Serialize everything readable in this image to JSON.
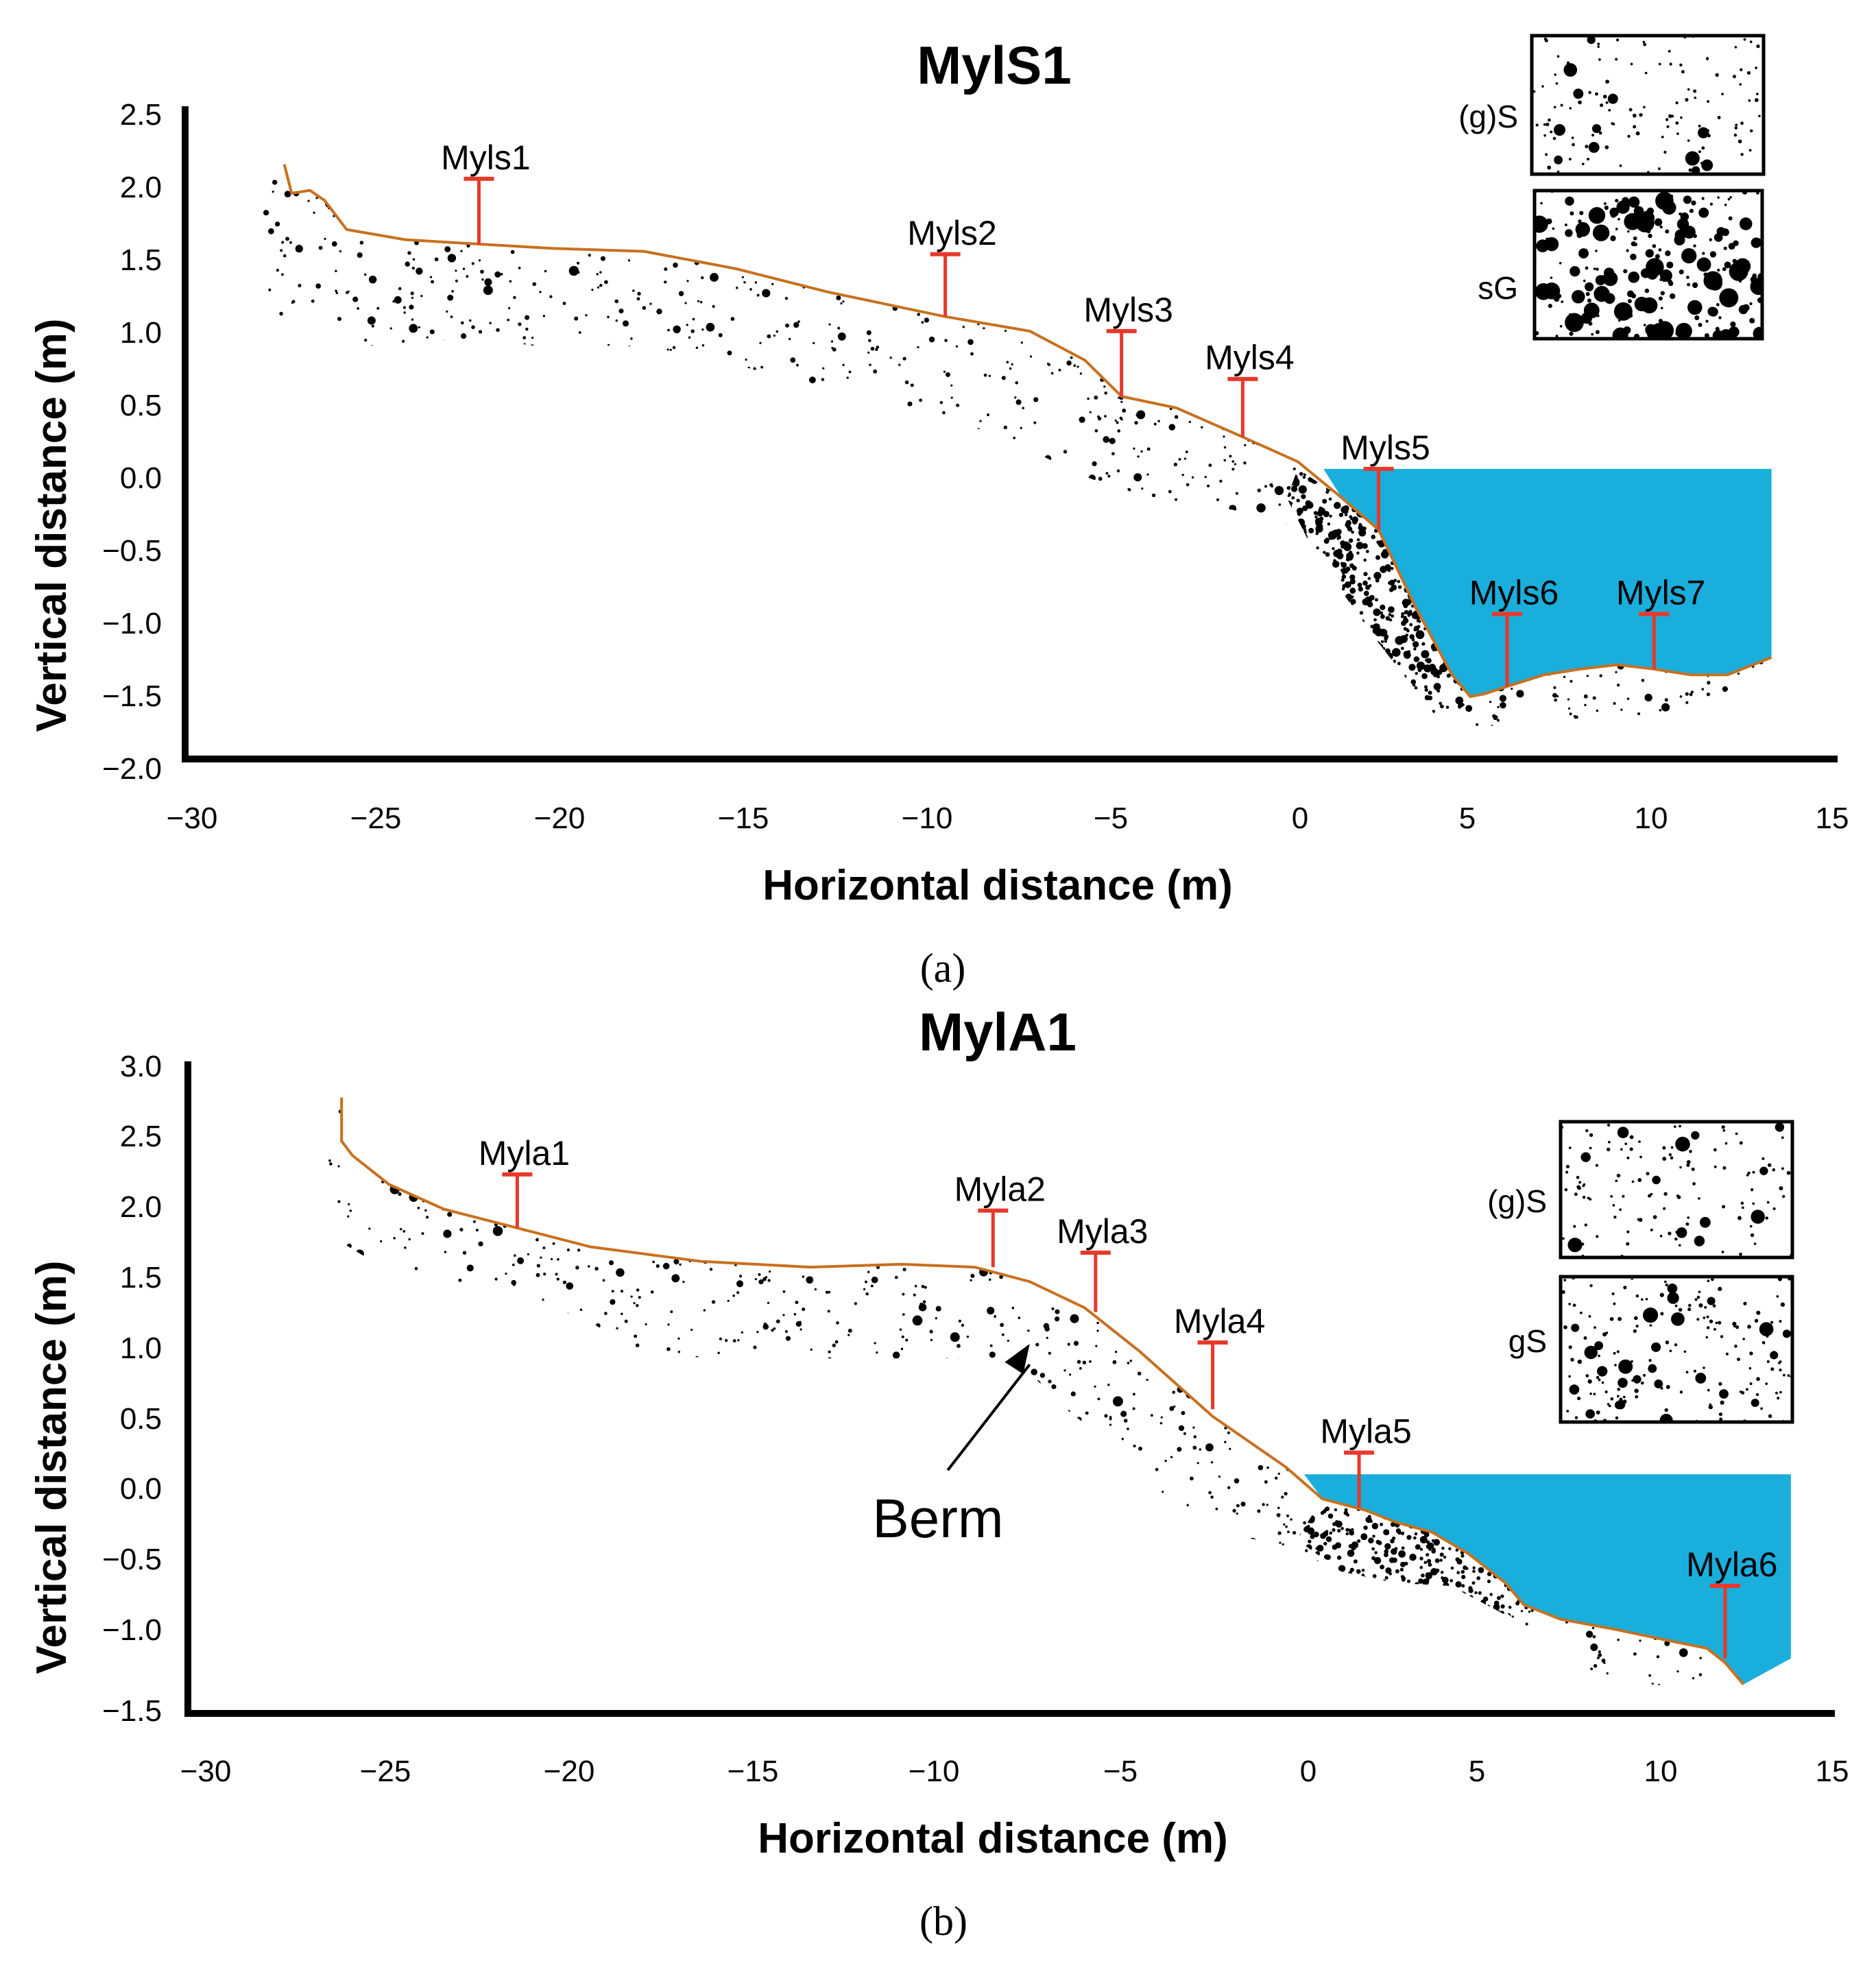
{
  "colors": {
    "profile": "#c8701e",
    "water": "#1aaedc",
    "station": "#e8382a",
    "sediment": "#000000"
  },
  "chart_data": [
    {
      "type": "line",
      "title": "MylS1",
      "panel_label": "(a)",
      "xlabel": "Horizontal distance (m)",
      "ylabel": "Vertical distance (m)",
      "xlim": [
        -30,
        15
      ],
      "ylim": [
        -2.0,
        2.5
      ],
      "xticks": [
        "−30",
        "−25",
        "−20",
        "−15",
        "−10",
        "−5",
        "0",
        "5",
        "10",
        "15"
      ],
      "xtick_values": [
        -30,
        -25,
        -20,
        -15,
        -10,
        -5,
        0,
        5,
        10,
        15
      ],
      "yticks": [
        "2.5",
        "2.0",
        "1.5",
        "1.0",
        "0.5",
        "0.0",
        "−0.5",
        "−1.0",
        "−1.5",
        "−2.0"
      ],
      "ytick_values": [
        2.5,
        2.0,
        1.5,
        1.0,
        0.5,
        0.0,
        -0.5,
        -1.0,
        -1.5,
        -2.0
      ],
      "profile": {
        "x": [
          -27.3,
          -27.1,
          -26.6,
          -26.2,
          -25.6,
          -24,
          -22,
          -20,
          -17.5,
          -15,
          -12.5,
          -9.3,
          -7,
          -5.5,
          -4.5,
          -3,
          -1.2,
          0.3,
          1.5,
          2.5,
          3.5,
          4.5,
          5,
          5.4,
          6,
          7,
          8,
          9,
          10,
          11,
          12,
          13.2
        ],
        "y": [
          2.1,
          1.9,
          1.92,
          1.85,
          1.65,
          1.58,
          1.55,
          1.52,
          1.5,
          1.38,
          1.22,
          1.05,
          0.95,
          0.75,
          0.5,
          0.42,
          0.22,
          0.05,
          -0.2,
          -0.42,
          -0.95,
          -1.42,
          -1.57,
          -1.55,
          -1.5,
          -1.42,
          -1.38,
          -1.35,
          -1.38,
          -1.42,
          -1.42,
          -1.3
        ]
      },
      "sediment_lower": {
        "x": [
          13.2,
          12,
          10,
          8,
          6,
          5,
          4,
          2.5,
          1,
          -1.5,
          -3.5,
          -5.5,
          -8,
          -10,
          -12,
          -15,
          -18,
          -20.5,
          -22,
          -25,
          -26.5,
          -27.5,
          -28.2,
          -28,
          -27.6
        ],
        "y": [
          -1.3,
          -1.6,
          -1.7,
          -1.72,
          -1.75,
          -1.8,
          -1.65,
          -1.1,
          -0.45,
          -0.28,
          -0.25,
          -0.05,
          0.25,
          0.38,
          0.5,
          0.72,
          0.85,
          0.85,
          0.9,
          0.85,
          1.0,
          1.05,
          1.5,
          1.8,
          2.0
        ]
      },
      "coarse_zone": {
        "x": [
          0.3,
          1.5,
          2.5,
          3.5,
          4.5,
          5.0,
          4.2,
          2.5,
          0.8,
          0.0
        ],
        "y": [
          0.0,
          -0.2,
          -0.42,
          -0.95,
          -1.42,
          -1.6,
          -1.75,
          -1.2,
          -0.6,
          -0.2
        ]
      },
      "water": {
        "level": 0.0,
        "x_start": 1.0,
        "x_end": 13.2
      },
      "stations": [
        {
          "name": "Myls1",
          "x": -22,
          "y_ground": 1.55,
          "y_top": 2.0
        },
        {
          "name": "Myls2",
          "x": -9.3,
          "y_ground": 1.05,
          "y_top": 1.48
        },
        {
          "name": "Myls3",
          "x": -4.5,
          "y_ground": 0.5,
          "y_top": 0.95
        },
        {
          "name": "Myls4",
          "x": -1.2,
          "y_ground": 0.22,
          "y_top": 0.62
        },
        {
          "name": "Myls5",
          "x": 2.5,
          "y_ground": -0.42,
          "y_top": 0.0
        },
        {
          "name": "Myls6",
          "x": 6,
          "y_ground": -1.5,
          "y_top": -1.0
        },
        {
          "name": "Myls7",
          "x": 10,
          "y_ground": -1.38,
          "y_top": -1.0
        }
      ],
      "legend": [
        {
          "label": "(g)S",
          "texture": "sparse"
        },
        {
          "label": "sG",
          "texture": "coarse"
        }
      ],
      "annotations": []
    },
    {
      "type": "line",
      "title": "MylA1",
      "panel_label": "(b)",
      "xlabel": "Horizontal distance (m)",
      "ylabel": "Vertical distance (m)",
      "xlim": [
        -30,
        15
      ],
      "ylim": [
        -1.5,
        3.0
      ],
      "xticks": [
        "−30",
        "−25",
        "−20",
        "−15",
        "−10",
        "−5",
        "0",
        "5",
        "10",
        "15"
      ],
      "xtick_values": [
        -30,
        -25,
        -20,
        -15,
        -10,
        -5,
        0,
        5,
        10,
        15
      ],
      "yticks": [
        "3.0",
        "2.5",
        "2.0",
        "1.5",
        "1.0",
        "0.5",
        "0.0",
        "−0.5",
        "−1.0",
        "−1.5"
      ],
      "ytick_values": [
        3.0,
        2.5,
        2.0,
        1.5,
        1.0,
        0.5,
        0.0,
        -0.5,
        -1.0,
        -1.5
      ],
      "profile": {
        "x": [
          -25.8,
          -25.8,
          -25.5,
          -24.5,
          -23,
          -21,
          -19,
          -16,
          -13,
          -10.5,
          -8.5,
          -7,
          -5.5,
          -4,
          -2,
          0,
          1,
          2.2,
          3,
          4,
          5,
          6,
          6.5,
          7.5,
          9,
          10.5,
          11.5,
          12,
          12.5
        ],
        "y": [
          2.75,
          2.45,
          2.35,
          2.15,
          1.98,
          1.85,
          1.72,
          1.62,
          1.58,
          1.6,
          1.58,
          1.48,
          1.3,
          1.0,
          0.55,
          0.2,
          -0.02,
          -0.1,
          -0.18,
          -0.25,
          -0.4,
          -0.6,
          -0.75,
          -0.85,
          -0.92,
          -1.0,
          -1.05,
          -1.15,
          -1.3
        ]
      },
      "sediment_lower": {
        "x": [
          12.5,
          11,
          9,
          7.5,
          6,
          4.5,
          3,
          1.5,
          0,
          -2.5,
          -4.5,
          -6,
          -7,
          -8.5,
          -10,
          -12,
          -15,
          -17.5,
          -19,
          -21,
          -23,
          -24.5,
          -25.8,
          -26.2,
          -26
        ],
        "y": [
          -1.3,
          -1.32,
          -1.28,
          -1.1,
          -0.8,
          -0.6,
          -0.6,
          -0.52,
          -0.35,
          -0.2,
          0.3,
          0.6,
          0.85,
          0.95,
          0.95,
          0.95,
          0.95,
          0.97,
          1.2,
          1.4,
          1.5,
          1.55,
          1.75,
          2.3,
          2.6
        ]
      },
      "coarse_zone": {
        "x": [
          1,
          2.2,
          3,
          4,
          5,
          6,
          6.5,
          6.0,
          4.5,
          3,
          1.5,
          0.3
        ],
        "y": [
          -0.02,
          -0.1,
          -0.18,
          -0.25,
          -0.4,
          -0.6,
          -0.75,
          -0.82,
          -0.62,
          -0.6,
          -0.52,
          -0.3
        ]
      },
      "water": {
        "level": 0.15,
        "x_start": 0.5,
        "x_end": 13.8,
        "y_bottom": -1.12
      },
      "stations": [
        {
          "name": "Myla1",
          "x": -21,
          "y_ground": 1.85,
          "y_top": 2.22
        },
        {
          "name": "Myla2",
          "x": -8,
          "y_ground": 1.58,
          "y_top": 1.97
        },
        {
          "name": "Myla3",
          "x": -5.2,
          "y_ground": 1.27,
          "y_top": 1.68
        },
        {
          "name": "Myla4",
          "x": -2,
          "y_ground": 0.6,
          "y_top": 1.06
        },
        {
          "name": "Myla5",
          "x": 2,
          "y_ground": -0.08,
          "y_top": 0.3
        },
        {
          "name": "Myla6",
          "x": 12,
          "y_ground": -1.12,
          "y_top": -0.62
        }
      ],
      "legend": [
        {
          "label": "(g)S",
          "texture": "sparse"
        },
        {
          "label": "gS",
          "texture": "medium"
        }
      ],
      "annotations": [
        {
          "text": "Berm",
          "x": -7,
          "y": 1.05,
          "text_x": -9.8,
          "text_y": -0.2
        }
      ]
    }
  ]
}
